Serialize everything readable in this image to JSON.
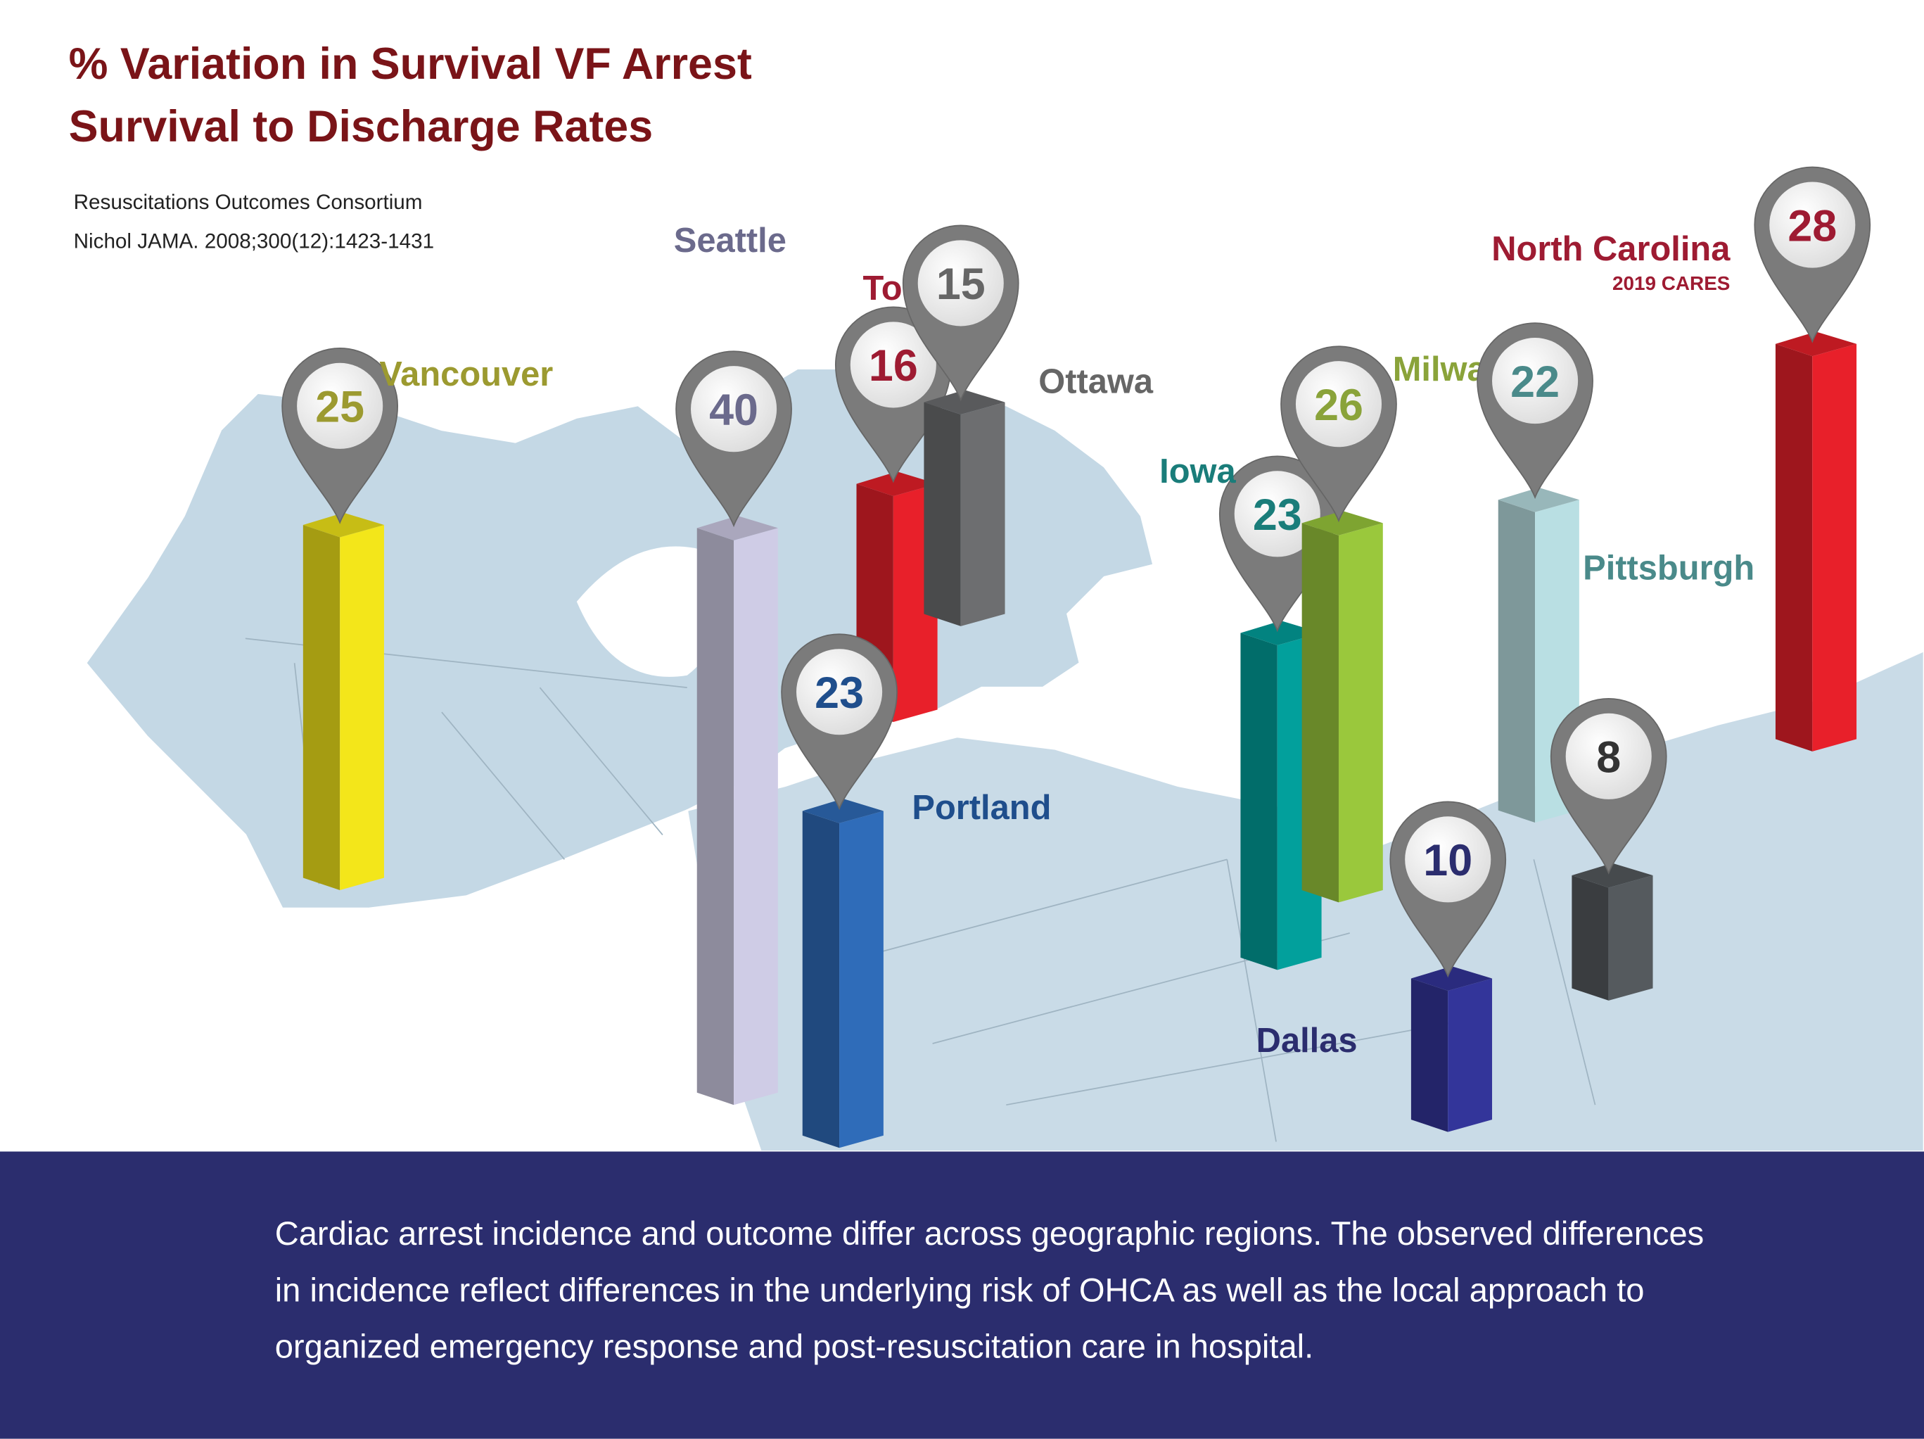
{
  "chart_data": {
    "type": "bar",
    "title": [
      "% Variation in Survival VF Arrest",
      "Survival to Discharge Rates"
    ],
    "notes": [
      "Resuscitations Outcomes Consortium",
      "Nichol JAMA. 2008;300(12):1423-1431"
    ],
    "categories": [
      "Vancouver",
      "Seattle",
      "Toronto",
      "Ottawa",
      "Portland",
      "Iowa",
      "Milwaukee",
      "Pittsburgh",
      "Dallas",
      null,
      "North Carolina"
    ],
    "values": [
      25,
      40,
      16,
      15,
      23,
      23,
      26,
      22,
      10,
      8,
      28
    ],
    "colors": [
      "#f3e61a",
      "#cfcce6",
      "#e8202a",
      "#6d6e70",
      "#2f6cb9",
      "#02a09c",
      "#9ac83c",
      "#b9dfe3",
      "#33359a",
      "#555a5e",
      "#e8202a"
    ],
    "label_colors": [
      "#9c9a30",
      "#6b6a8c",
      "#9e1b32",
      "#666666",
      "#1f4e8c",
      "#1a7d7a",
      "#8aa33a",
      "#4a8a8a",
      "#2b2d6e",
      "#333333",
      "#9e1b32"
    ],
    "annotation": "2019 CARES",
    "footer": "Cardiac arrest incidence and outcome differ across geographic regions.  The observed differences in incidence reflect differences in the underlying risk of OHCA as well as the local approach to organized emergency response and post-resuscitation care in hospital."
  }
}
